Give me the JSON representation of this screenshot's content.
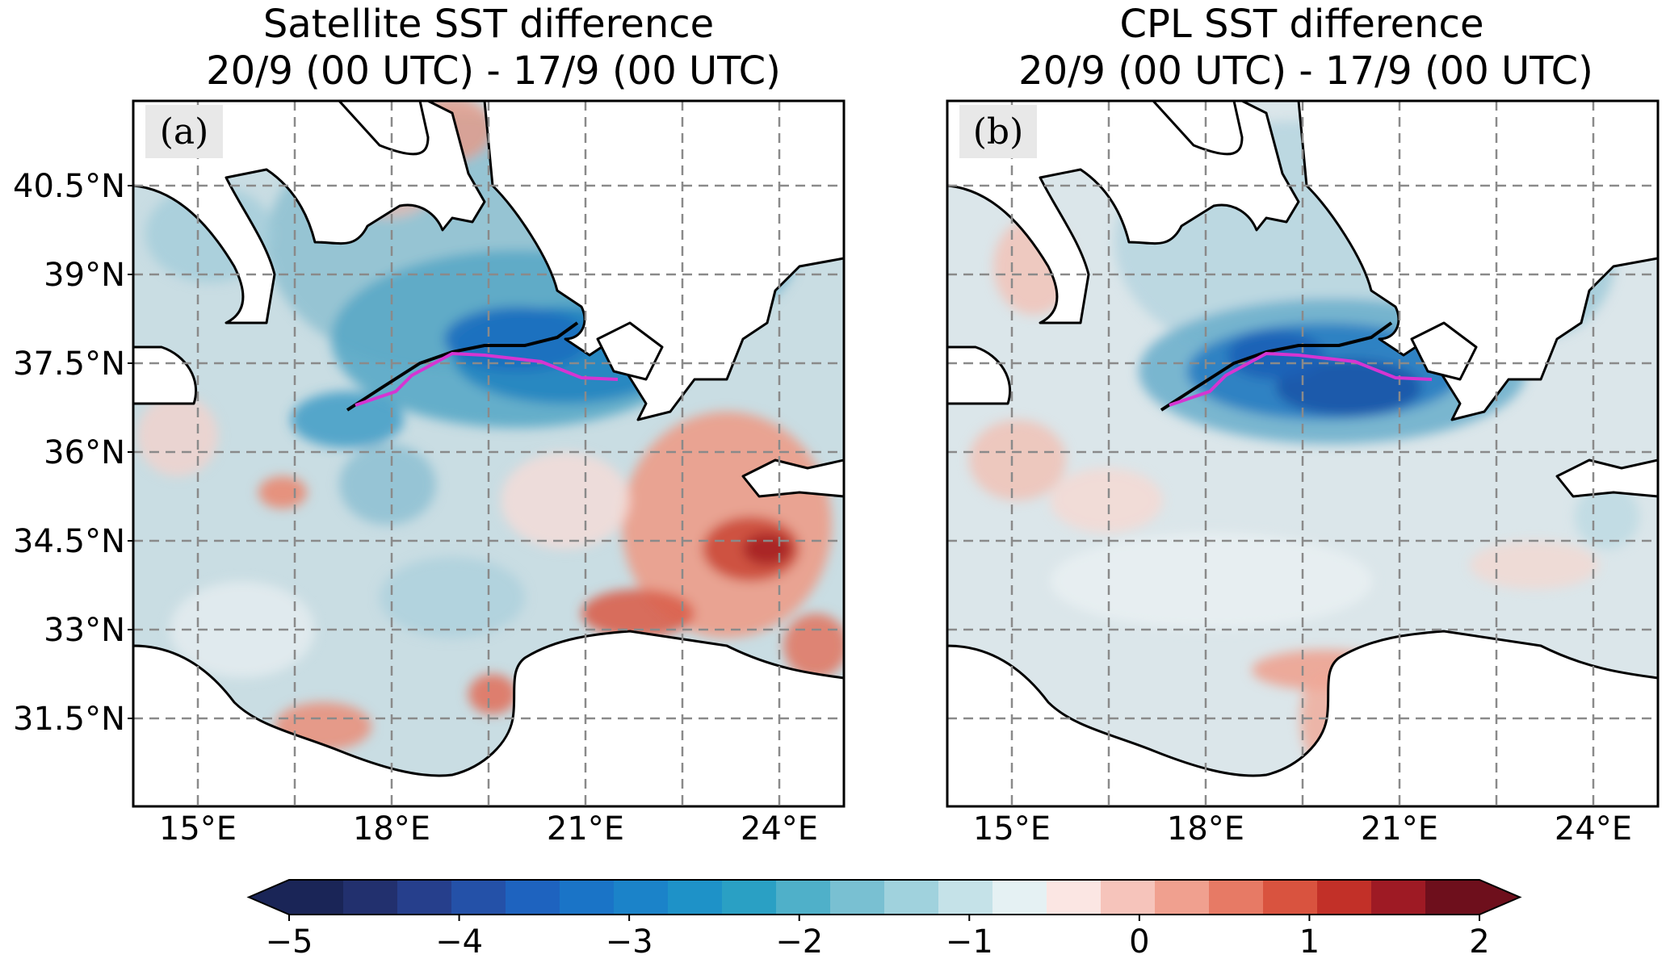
{
  "figure": {
    "panels": [
      {
        "id": "a",
        "label": "(a)",
        "title_line1": "Satellite SST difference",
        "title_line2": "20/9 (00 UTC) - 17/9 (00 UTC)",
        "ylabels": [
          "40.5°N",
          "39°N",
          "37.5°N",
          "36°N",
          "34.5°N",
          "33°N",
          "31.5°N"
        ],
        "xlabels": [
          "15°E",
          "18°E",
          "21°E",
          "24°E"
        ]
      },
      {
        "id": "b",
        "label": "(b)",
        "title_line1": "CPL SST difference",
        "title_line2": "20/9 (00 UTC) - 17/9 (00 UTC)",
        "ylabels": [],
        "xlabels": [
          "15°E",
          "18°E",
          "21°E",
          "24°E"
        ]
      }
    ],
    "colorbar": {
      "ticks": [
        "−5",
        "−4",
        "−3",
        "−2",
        "−1",
        "0",
        "1",
        "2"
      ],
      "tick_values": [
        -5,
        -4,
        -3,
        -2,
        -1,
        0,
        1,
        2
      ],
      "min": -5,
      "max": 2,
      "extend": "both",
      "colors": [
        "#1a2557",
        "#22306e",
        "#263f8c",
        "#2451a8",
        "#1e63bf",
        "#1a74c7",
        "#1b83c9",
        "#1e92c8",
        "#2aa0c4",
        "#4fb0c9",
        "#79c0d2",
        "#a0d2dd",
        "#c5e2e8",
        "#e5f1f3",
        "#fbe6e3",
        "#f6c4bb",
        "#f0a08f",
        "#e77a65",
        "#d9533f",
        "#c23028",
        "#9e1a24",
        "#6e0f1c"
      ]
    },
    "legend_colors": {
      "track_black": "#000000",
      "track_magenta": "#d535d2",
      "land": "#ffffff",
      "coast": "#000000",
      "grid": "#8a8a8a"
    }
  }
}
